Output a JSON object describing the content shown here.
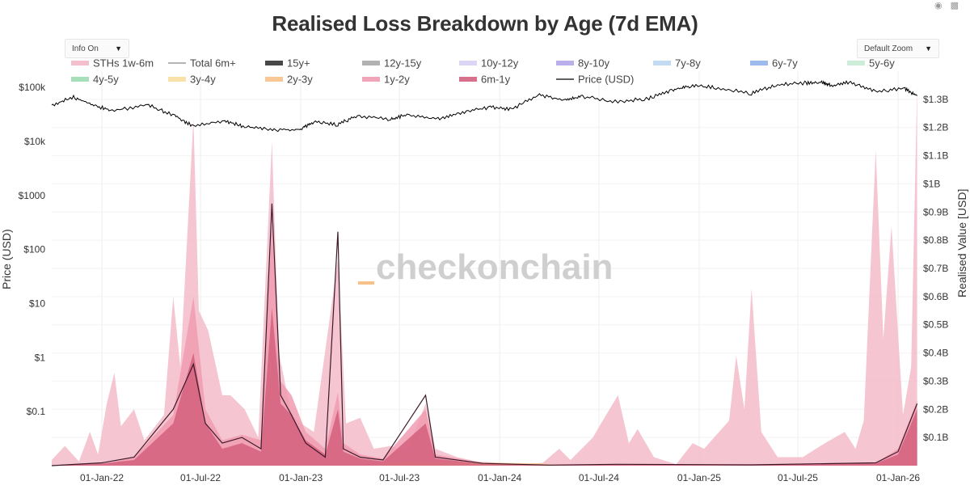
{
  "page": {
    "title": "Realised Loss Breakdown by Age (7d EMA)",
    "info_dropdown": "Info On",
    "zoom_dropdown": "Default Zoom",
    "watermark": "checkonchain",
    "modebar_icons": [
      "camera-icon",
      "bar-chart-icon"
    ]
  },
  "colors": {
    "sths": "#f2b8c6",
    "m6_1y": "#d4607e",
    "y1_2y": "#f09bb0",
    "y2_3y": "#f7c18a",
    "price": "#000000",
    "total": "#888888",
    "dark_line": "#3d1a2a"
  },
  "chart_data": {
    "type": "area",
    "title": "Realised Loss Breakdown by Age (7d EMA)",
    "ylabel_left": "Price (USD)",
    "ylabel_right": "Realised Value [USD]",
    "yscale_left": "log",
    "ylim_left": [
      0.01,
      200000
    ],
    "ylim_right": [
      0,
      1400000000
    ],
    "xlim": [
      "2021-10-01",
      "2026-02-10"
    ],
    "left_ticks": [
      {
        "value": 100000,
        "label": "$100k"
      },
      {
        "value": 10000,
        "label": "$10k"
      },
      {
        "value": 1000,
        "label": "$1000"
      },
      {
        "value": 100,
        "label": "$100"
      },
      {
        "value": 10,
        "label": "$10"
      },
      {
        "value": 1,
        "label": "$1"
      },
      {
        "value": 0.1,
        "label": "$0.1"
      }
    ],
    "right_ticks": [
      {
        "value": 100000000,
        "label": "$0.1B"
      },
      {
        "value": 200000000,
        "label": "$0.2B"
      },
      {
        "value": 300000000,
        "label": "$0.3B"
      },
      {
        "value": 400000000,
        "label": "$0.4B"
      },
      {
        "value": 500000000,
        "label": "$0.5B"
      },
      {
        "value": 600000000,
        "label": "$0.6B"
      },
      {
        "value": 700000000,
        "label": "$0.7B"
      },
      {
        "value": 800000000,
        "label": "$0.8B"
      },
      {
        "value": 900000000,
        "label": "$0.9B"
      },
      {
        "value": 1000000000,
        "label": "$1B"
      },
      {
        "value": 1100000000,
        "label": "$1.1B"
      },
      {
        "value": 1200000000,
        "label": "$1.2B"
      },
      {
        "value": 1300000000,
        "label": "$1.3B"
      }
    ],
    "x_ticks": [
      {
        "date": "2022-01-01",
        "label": "01-Jan-22"
      },
      {
        "date": "2022-07-01",
        "label": "01-Jul-22"
      },
      {
        "date": "2023-01-01",
        "label": "01-Jan-23"
      },
      {
        "date": "2023-07-01",
        "label": "01-Jul-23"
      },
      {
        "date": "2024-01-01",
        "label": "01-Jan-24"
      },
      {
        "date": "2024-07-01",
        "label": "01-Jul-24"
      },
      {
        "date": "2025-01-01",
        "label": "01-Jan-25"
      },
      {
        "date": "2025-07-01",
        "label": "01-Jul-25"
      },
      {
        "date": "2026-01-01",
        "label": "01-Jan-26"
      }
    ],
    "legend": [
      {
        "name": "STHs 1w-6m",
        "color": "#f2b8c6",
        "kind": "fill"
      },
      {
        "name": "Total 6m+",
        "color": "#888888",
        "kind": "line"
      },
      {
        "name": "15y+",
        "color": "#333333",
        "kind": "fill"
      },
      {
        "name": "12y-15y",
        "color": "#aaaaaa",
        "kind": "fill"
      },
      {
        "name": "10y-12y",
        "color": "#d9d0f5",
        "kind": "fill"
      },
      {
        "name": "8y-10y",
        "color": "#b3a6e8",
        "kind": "fill"
      },
      {
        "name": "7y-8y",
        "color": "#bcd6f2",
        "kind": "fill"
      },
      {
        "name": "6y-7y",
        "color": "#8fb4ea",
        "kind": "fill"
      },
      {
        "name": "5y-6y",
        "color": "#c6ecd4",
        "kind": "fill"
      },
      {
        "name": "4y-5y",
        "color": "#9edcb4",
        "kind": "fill"
      },
      {
        "name": "3y-4y",
        "color": "#f8dea0",
        "kind": "fill"
      },
      {
        "name": "2y-3y",
        "color": "#f7c18a",
        "kind": "fill"
      },
      {
        "name": "1y-2y",
        "color": "#f09bb0",
        "kind": "fill"
      },
      {
        "name": "6m-1y",
        "color": "#d4607e",
        "kind": "fill"
      },
      {
        "name": "Price (USD)",
        "color": "#000000",
        "kind": "line"
      }
    ],
    "price_series": {
      "name": "Price (USD)",
      "points": [
        [
          "2021-10-01",
          47000
        ],
        [
          "2021-11-10",
          66000
        ],
        [
          "2021-12-15",
          48000
        ],
        [
          "2022-01-20",
          37000
        ],
        [
          "2022-03-28",
          47000
        ],
        [
          "2022-05-15",
          30000
        ],
        [
          "2022-06-18",
          19000
        ],
        [
          "2022-08-15",
          24000
        ],
        [
          "2022-09-20",
          19000
        ],
        [
          "2022-11-10",
          16500
        ],
        [
          "2022-12-31",
          16600
        ],
        [
          "2023-01-25",
          23000
        ],
        [
          "2023-03-10",
          20500
        ],
        [
          "2023-04-15",
          30000
        ],
        [
          "2023-06-15",
          25500
        ],
        [
          "2023-07-15",
          31000
        ],
        [
          "2023-09-10",
          25800
        ],
        [
          "2023-10-25",
          34500
        ],
        [
          "2023-12-15",
          43000
        ],
        [
          "2024-01-23",
          39500
        ],
        [
          "2024-03-14",
          72000
        ],
        [
          "2024-05-01",
          58000
        ],
        [
          "2024-06-01",
          68000
        ],
        [
          "2024-08-05",
          54000
        ],
        [
          "2024-10-01",
          63000
        ],
        [
          "2024-11-15",
          90000
        ],
        [
          "2024-12-17",
          106000
        ],
        [
          "2025-02-01",
          100000
        ],
        [
          "2025-04-07",
          77000
        ],
        [
          "2025-05-22",
          110000
        ],
        [
          "2025-07-14",
          121000
        ],
        [
          "2025-08-14",
          124000
        ],
        [
          "2025-09-01",
          108000
        ],
        [
          "2025-10-06",
          125000
        ],
        [
          "2025-11-21",
          84000
        ],
        [
          "2026-01-14",
          95000
        ],
        [
          "2026-02-05",
          70000
        ]
      ]
    },
    "series": [
      {
        "name": "STHs 1w-6m",
        "color": "#f2b8c6",
        "points": [
          [
            "2021-10-01",
            20000000
          ],
          [
            "2021-10-25",
            70000000
          ],
          [
            "2021-11-20",
            15000000
          ],
          [
            "2021-12-10",
            120000000
          ],
          [
            "2021-12-25",
            40000000
          ],
          [
            "2022-01-10",
            220000000
          ],
          [
            "2022-01-24",
            330000000
          ],
          [
            "2022-02-05",
            140000000
          ],
          [
            "2022-03-01",
            200000000
          ],
          [
            "2022-03-20",
            90000000
          ],
          [
            "2022-04-25",
            180000000
          ],
          [
            "2022-05-12",
            600000000
          ],
          [
            "2022-05-25",
            350000000
          ],
          [
            "2022-06-18",
            1230000000
          ],
          [
            "2022-06-28",
            550000000
          ],
          [
            "2022-07-15",
            480000000
          ],
          [
            "2022-08-10",
            250000000
          ],
          [
            "2022-08-25",
            250000000
          ],
          [
            "2022-09-20",
            200000000
          ],
          [
            "2022-10-15",
            100000000
          ],
          [
            "2022-11-09",
            1150000000
          ],
          [
            "2022-11-22",
            400000000
          ],
          [
            "2022-12-15",
            180000000
          ],
          [
            "2023-01-01",
            150000000
          ],
          [
            "2023-01-25",
            120000000
          ],
          [
            "2023-03-10",
            730000000
          ],
          [
            "2023-03-25",
            150000000
          ],
          [
            "2023-04-20",
            170000000
          ],
          [
            "2023-05-15",
            60000000
          ],
          [
            "2023-06-15",
            70000000
          ],
          [
            "2023-07-15",
            50000000
          ],
          [
            "2023-08-18",
            220000000
          ],
          [
            "2023-09-05",
            60000000
          ],
          [
            "2023-10-15",
            30000000
          ],
          [
            "2023-11-20",
            15000000
          ],
          [
            "2024-01-05",
            10000000
          ],
          [
            "2024-02-15",
            5000000
          ],
          [
            "2024-03-20",
            10000000
          ],
          [
            "2024-04-19",
            60000000
          ],
          [
            "2024-05-10",
            20000000
          ],
          [
            "2024-06-20",
            100000000
          ],
          [
            "2024-07-05",
            150000000
          ],
          [
            "2024-08-05",
            250000000
          ],
          [
            "2024-08-25",
            80000000
          ],
          [
            "2024-09-10",
            130000000
          ],
          [
            "2024-10-10",
            30000000
          ],
          [
            "2024-11-20",
            5000000
          ],
          [
            "2024-12-20",
            80000000
          ],
          [
            "2025-01-10",
            60000000
          ],
          [
            "2025-02-25",
            160000000
          ],
          [
            "2025-03-10",
            390000000
          ],
          [
            "2025-03-25",
            200000000
          ],
          [
            "2025-04-07",
            630000000
          ],
          [
            "2025-04-25",
            120000000
          ],
          [
            "2025-05-25",
            30000000
          ],
          [
            "2025-07-10",
            30000000
          ],
          [
            "2025-08-20",
            80000000
          ],
          [
            "2025-09-25",
            120000000
          ],
          [
            "2025-10-15",
            60000000
          ],
          [
            "2025-10-30",
            160000000
          ],
          [
            "2025-11-21",
            1120000000
          ],
          [
            "2025-12-05",
            450000000
          ],
          [
            "2025-12-20",
            850000000
          ],
          [
            "2026-01-10",
            180000000
          ],
          [
            "2026-01-25",
            350000000
          ],
          [
            "2026-02-05",
            1350000000
          ]
        ]
      },
      {
        "name": "1y-2y",
        "color": "#f09bb0",
        "points": [
          [
            "2021-10-01",
            0
          ],
          [
            "2022-01-01",
            5000000
          ],
          [
            "2022-03-01",
            30000000
          ],
          [
            "2022-05-12",
            180000000
          ],
          [
            "2022-06-18",
            600000000
          ],
          [
            "2022-07-10",
            200000000
          ],
          [
            "2022-08-10",
            90000000
          ],
          [
            "2022-09-15",
            110000000
          ],
          [
            "2022-10-20",
            90000000
          ],
          [
            "2022-11-09",
            850000000
          ],
          [
            "2022-11-25",
            300000000
          ],
          [
            "2022-12-15",
            250000000
          ],
          [
            "2023-01-10",
            120000000
          ],
          [
            "2023-02-15",
            60000000
          ],
          [
            "2023-03-10",
            260000000
          ],
          [
            "2023-03-20",
            80000000
          ],
          [
            "2023-04-20",
            40000000
          ],
          [
            "2023-06-01",
            25000000
          ],
          [
            "2023-08-18",
            200000000
          ],
          [
            "2023-09-05",
            40000000
          ],
          [
            "2023-12-01",
            10000000
          ],
          [
            "2024-04-01",
            3000000
          ],
          [
            "2024-08-05",
            5000000
          ],
          [
            "2025-04-07",
            2000000
          ],
          [
            "2025-11-21",
            10000000
          ],
          [
            "2026-01-01",
            60000000
          ],
          [
            "2026-02-05",
            230000000
          ]
        ]
      },
      {
        "name": "6m-1y",
        "color": "#d4607e",
        "points": [
          [
            "2021-10-01",
            0
          ],
          [
            "2022-01-01",
            8000000
          ],
          [
            "2022-03-01",
            20000000
          ],
          [
            "2022-05-12",
            150000000
          ],
          [
            "2022-06-18",
            400000000
          ],
          [
            "2022-07-10",
            150000000
          ],
          [
            "2022-08-10",
            60000000
          ],
          [
            "2022-09-15",
            80000000
          ],
          [
            "2022-10-20",
            50000000
          ],
          [
            "2022-11-09",
            560000000
          ],
          [
            "2022-11-25",
            220000000
          ],
          [
            "2022-12-15",
            180000000
          ],
          [
            "2023-01-10",
            90000000
          ],
          [
            "2023-02-15",
            40000000
          ],
          [
            "2023-03-10",
            200000000
          ],
          [
            "2023-03-20",
            50000000
          ],
          [
            "2023-04-20",
            25000000
          ],
          [
            "2023-06-01",
            15000000
          ],
          [
            "2023-08-18",
            150000000
          ],
          [
            "2023-09-05",
            25000000
          ],
          [
            "2023-12-01",
            6000000
          ],
          [
            "2024-04-01",
            2000000
          ],
          [
            "2024-08-05",
            3000000
          ],
          [
            "2025-04-07",
            2000000
          ],
          [
            "2025-11-21",
            8000000
          ],
          [
            "2026-01-01",
            40000000
          ],
          [
            "2026-02-05",
            200000000
          ]
        ]
      },
      {
        "name": "2y-3y",
        "color": "#f7c18a",
        "points": [
          [
            "2023-05-01",
            0
          ],
          [
            "2023-07-01",
            15000000
          ],
          [
            "2023-10-01",
            12000000
          ],
          [
            "2024-01-01",
            10000000
          ],
          [
            "2024-03-15",
            8000000
          ],
          [
            "2024-05-01",
            0
          ]
        ]
      },
      {
        "name": "Total 6m+",
        "color": "#3d1a2a",
        "kind": "line",
        "points": [
          [
            "2021-10-01",
            0
          ],
          [
            "2022-01-01",
            10000000
          ],
          [
            "2022-03-01",
            30000000
          ],
          [
            "2022-05-12",
            200000000
          ],
          [
            "2022-06-18",
            360000000
          ],
          [
            "2022-07-10",
            150000000
          ],
          [
            "2022-08-10",
            80000000
          ],
          [
            "2022-09-15",
            100000000
          ],
          [
            "2022-10-20",
            60000000
          ],
          [
            "2022-11-09",
            930000000
          ],
          [
            "2022-11-25",
            250000000
          ],
          [
            "2022-12-15",
            180000000
          ],
          [
            "2023-01-10",
            80000000
          ],
          [
            "2023-02-15",
            30000000
          ],
          [
            "2023-03-10",
            830000000
          ],
          [
            "2023-03-20",
            60000000
          ],
          [
            "2023-04-20",
            30000000
          ],
          [
            "2023-06-01",
            20000000
          ],
          [
            "2023-08-18",
            250000000
          ],
          [
            "2023-09-05",
            30000000
          ],
          [
            "2023-12-01",
            8000000
          ],
          [
            "2024-04-01",
            2000000
          ],
          [
            "2024-08-05",
            5000000
          ],
          [
            "2025-04-07",
            3000000
          ],
          [
            "2025-11-21",
            10000000
          ],
          [
            "2026-01-01",
            50000000
          ],
          [
            "2026-02-05",
            220000000
          ]
        ]
      }
    ]
  }
}
